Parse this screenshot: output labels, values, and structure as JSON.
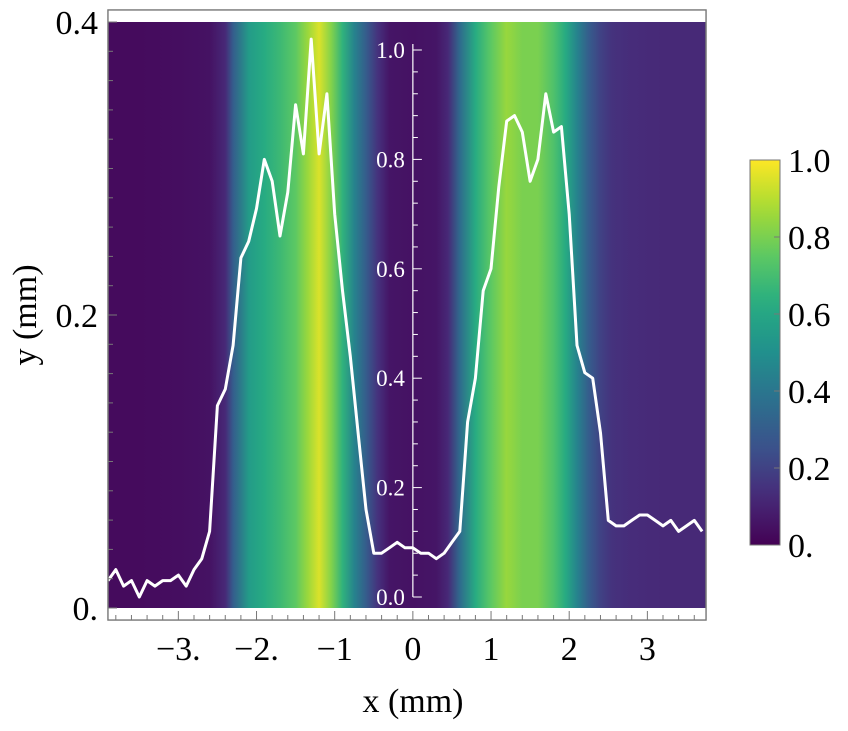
{
  "chart_data": {
    "type": "heatmap",
    "title": "",
    "xlabel": "x (mm)",
    "ylabel": "y (mm)",
    "xlim": [
      -3.9,
      3.75
    ],
    "ylim": [
      0.0,
      0.4
    ],
    "x_ticks": [
      {
        "value": -3,
        "label": "−3."
      },
      {
        "value": -2,
        "label": "−2."
      },
      {
        "value": -1,
        "label": "−1"
      },
      {
        "value": 0,
        "label": "0"
      },
      {
        "value": 1,
        "label": "1"
      },
      {
        "value": 2,
        "label": "2"
      },
      {
        "value": 3,
        "label": "3"
      }
    ],
    "y_ticks": [
      {
        "value": 0.0,
        "label": "0."
      },
      {
        "value": 0.2,
        "label": "0.2"
      },
      {
        "value": 0.4,
        "label": "0.4"
      }
    ],
    "inner_axis": {
      "position_x": 0,
      "ylim": [
        0.0,
        1.0
      ],
      "ticks": [
        "0.0",
        "0.2",
        "0.4",
        "0.6",
        "0.8",
        "1.0"
      ],
      "color": "#ffffff"
    },
    "colorbar": {
      "range": [
        0.0,
        1.0
      ],
      "ticks": [
        "0.",
        "0.2",
        "0.4",
        "0.6",
        "0.8",
        "1.0"
      ],
      "colormap": "viridis"
    },
    "heatmap_profile": {
      "note_values": "intensity as function of x, uniform along y",
      "x": [
        -3.9,
        -3.5,
        -3.0,
        -2.6,
        -2.4,
        -2.3,
        -2.1,
        -1.9,
        -1.7,
        -1.5,
        -1.35,
        -1.2,
        -1.05,
        -0.9,
        -0.75,
        -0.6,
        -0.45,
        -0.3,
        0.0,
        0.3,
        0.45,
        0.6,
        0.8,
        1.0,
        1.2,
        1.4,
        1.6,
        1.8,
        1.95,
        2.1,
        2.25,
        2.4,
        2.55,
        2.8,
        3.2,
        3.75
      ],
      "intensity": [
        0.03,
        0.03,
        0.04,
        0.05,
        0.12,
        0.3,
        0.55,
        0.62,
        0.68,
        0.75,
        0.85,
        0.95,
        0.82,
        0.65,
        0.45,
        0.3,
        0.15,
        0.06,
        0.05,
        0.06,
        0.12,
        0.35,
        0.62,
        0.75,
        0.85,
        0.8,
        0.8,
        0.72,
        0.62,
        0.45,
        0.3,
        0.2,
        0.15,
        0.13,
        0.12,
        0.12
      ]
    },
    "series": [
      {
        "x": [
          -3.9,
          -3.8,
          -3.7,
          -3.6,
          -3.5,
          -3.4,
          -3.3,
          -3.2,
          -3.1,
          -3.0,
          -2.9,
          -2.8,
          -2.7,
          -2.6,
          -2.5,
          -2.4,
          -2.3,
          -2.2,
          -2.1,
          -2.0,
          -1.9,
          -1.8,
          -1.7,
          -1.6,
          -1.5,
          -1.4,
          -1.3,
          -1.2,
          -1.1,
          -1.0,
          -0.9,
          -0.8,
          -0.7,
          -0.6,
          -0.5,
          -0.4,
          -0.3,
          -0.2,
          -0.1,
          0.0,
          0.1,
          0.2,
          0.3,
          0.4,
          0.5,
          0.6,
          0.7,
          0.8,
          0.9,
          1.0,
          1.1,
          1.2,
          1.3,
          1.4,
          1.5,
          1.6,
          1.7,
          1.8,
          1.9,
          2.0,
          2.1,
          2.2,
          2.3,
          2.4,
          2.5,
          2.6,
          2.7,
          2.8,
          2.9,
          3.0,
          3.1,
          3.2,
          3.3,
          3.4,
          3.5,
          3.6,
          3.7
        ],
        "y": [
          0.03,
          0.05,
          0.02,
          0.03,
          0.0,
          0.03,
          0.02,
          0.03,
          0.03,
          0.04,
          0.02,
          0.05,
          0.07,
          0.12,
          0.35,
          0.38,
          0.46,
          0.62,
          0.65,
          0.71,
          0.8,
          0.76,
          0.66,
          0.74,
          0.9,
          0.81,
          1.02,
          0.81,
          0.92,
          0.7,
          0.56,
          0.44,
          0.3,
          0.16,
          0.08,
          0.08,
          0.09,
          0.1,
          0.09,
          0.09,
          0.08,
          0.08,
          0.07,
          0.08,
          0.1,
          0.12,
          0.32,
          0.4,
          0.56,
          0.6,
          0.75,
          0.87,
          0.88,
          0.85,
          0.76,
          0.8,
          0.92,
          0.85,
          0.86,
          0.7,
          0.46,
          0.41,
          0.4,
          0.3,
          0.14,
          0.13,
          0.13,
          0.14,
          0.15,
          0.15,
          0.14,
          0.13,
          0.14,
          0.12,
          0.13,
          0.14,
          0.12
        ],
        "color": "#ffffff"
      }
    ]
  }
}
